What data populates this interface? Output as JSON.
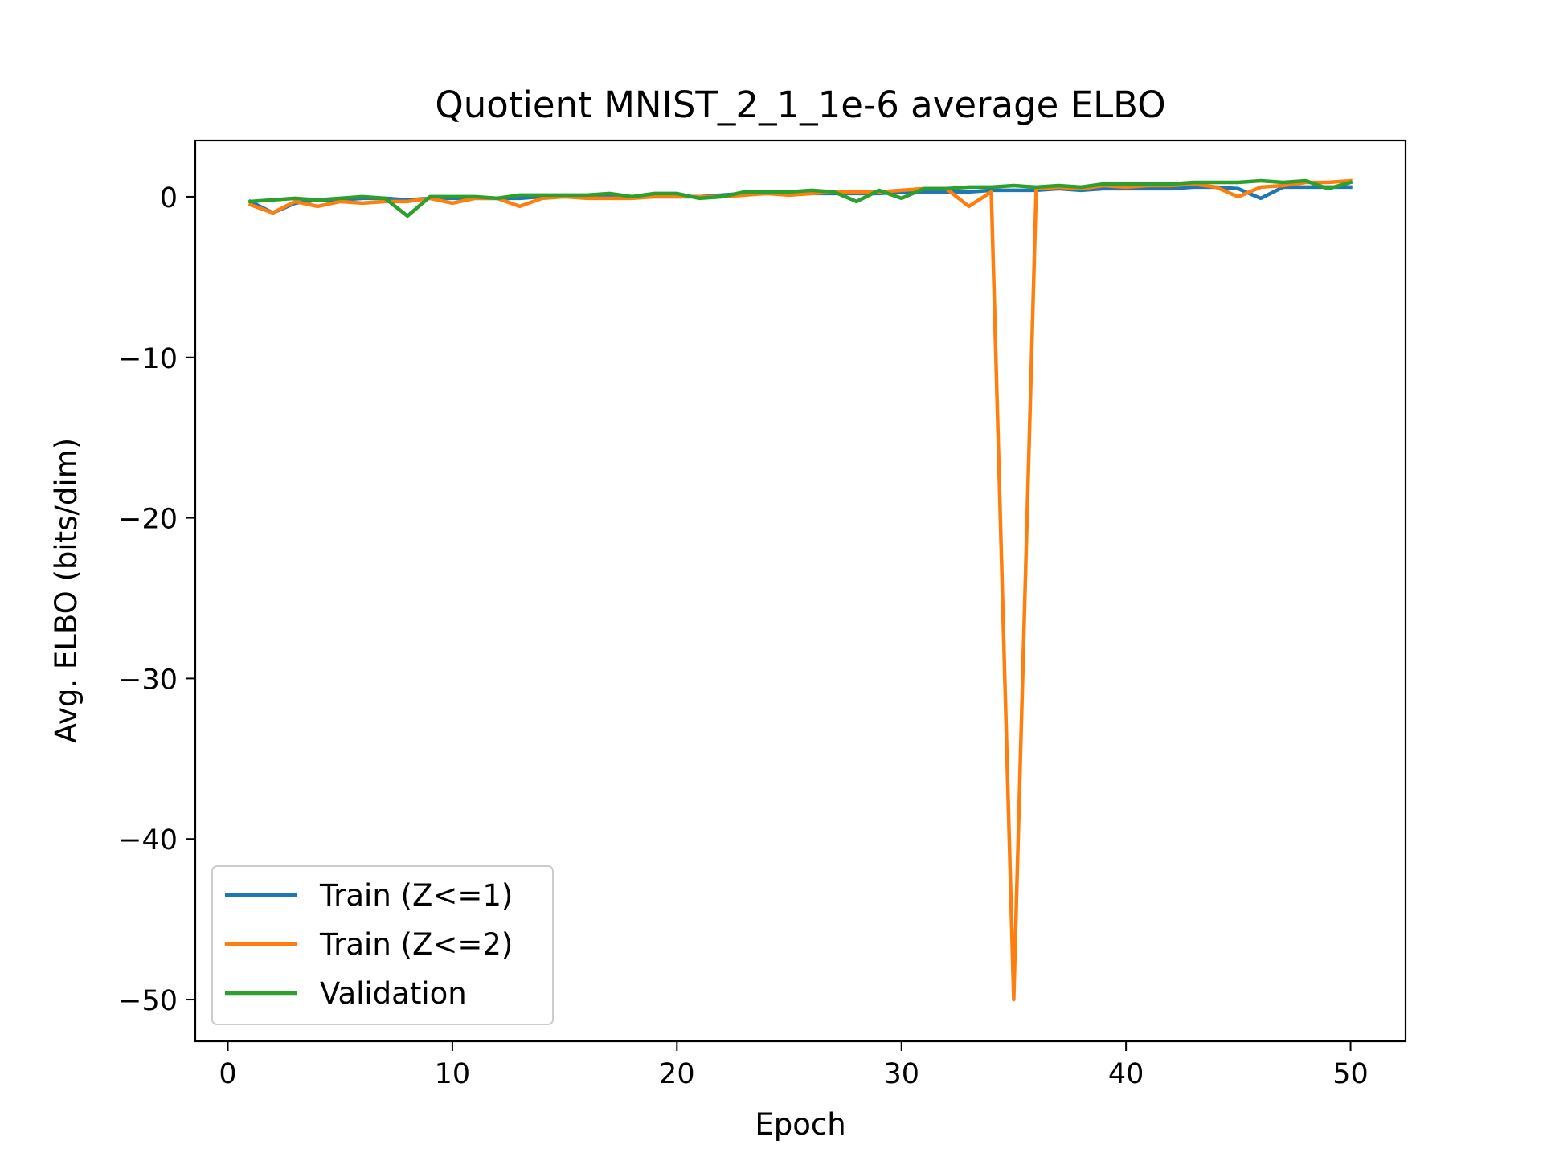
{
  "chart_data": {
    "type": "line",
    "title": "Quotient MNIST_2_1_1e-6 average ELBO",
    "xlabel": "Epoch",
    "ylabel": "Avg. ELBO (bits/dim)",
    "xlim": [
      -1.45,
      52.45
    ],
    "ylim": [
      -52.6,
      3.5
    ],
    "xticks": [
      0,
      10,
      20,
      30,
      40,
      50
    ],
    "xtick_labels": [
      "0",
      "10",
      "20",
      "30",
      "40",
      "50"
    ],
    "yticks": [
      0,
      -10,
      -20,
      -30,
      -40,
      -50
    ],
    "ytick_labels": [
      "0",
      "−10",
      "−20",
      "−30",
      "−40",
      "−50"
    ],
    "grid": false,
    "legend_position": "lower-left",
    "x": [
      1,
      2,
      3,
      4,
      5,
      6,
      7,
      8,
      9,
      10,
      11,
      12,
      13,
      14,
      15,
      16,
      17,
      18,
      19,
      20,
      21,
      22,
      23,
      24,
      25,
      26,
      27,
      28,
      29,
      30,
      31,
      32,
      33,
      34,
      35,
      36,
      37,
      38,
      39,
      40,
      41,
      42,
      43,
      44,
      45,
      46,
      47,
      48,
      49,
      50
    ],
    "series": [
      {
        "name": "Train (Z<=1)",
        "color": "#1f77b4",
        "values": [
          -0.3,
          -1.0,
          -0.4,
          -0.2,
          -0.2,
          -0.1,
          -0.1,
          -0.2,
          -0.1,
          -0.1,
          -0.1,
          -0.1,
          -0.1,
          0.0,
          0.0,
          0.0,
          0.0,
          0.0,
          0.0,
          0.0,
          0.0,
          0.1,
          0.2,
          0.2,
          0.2,
          0.2,
          0.2,
          0.2,
          0.2,
          0.3,
          0.3,
          0.3,
          0.3,
          0.4,
          0.4,
          0.4,
          0.5,
          0.4,
          0.5,
          0.5,
          0.5,
          0.5,
          0.6,
          0.6,
          0.5,
          -0.1,
          0.6,
          0.6,
          0.6,
          0.6
        ]
      },
      {
        "name": "Train (Z<=2)",
        "color": "#ff7f0e",
        "values": [
          -0.5,
          -1.0,
          -0.3,
          -0.6,
          -0.3,
          -0.4,
          -0.3,
          -0.3,
          -0.1,
          -0.4,
          -0.1,
          -0.1,
          -0.6,
          -0.1,
          0.0,
          -0.1,
          -0.1,
          -0.1,
          0.0,
          0.0,
          0.0,
          0.0,
          0.1,
          0.2,
          0.1,
          0.2,
          0.3,
          0.3,
          0.3,
          0.4,
          0.5,
          0.5,
          -0.6,
          0.3,
          -50.0,
          0.5,
          0.6,
          0.5,
          0.7,
          0.6,
          0.7,
          0.7,
          0.8,
          0.6,
          0.0,
          0.6,
          0.7,
          0.9,
          0.9,
          1.0
        ]
      },
      {
        "name": "Validation",
        "color": "#2ca02c",
        "values": [
          -0.3,
          -0.2,
          -0.1,
          -0.2,
          -0.1,
          0.0,
          -0.1,
          -1.2,
          0.0,
          0.0,
          0.0,
          -0.1,
          0.1,
          0.1,
          0.1,
          0.1,
          0.2,
          0.0,
          0.2,
          0.2,
          -0.1,
          0.0,
          0.3,
          0.3,
          0.3,
          0.4,
          0.3,
          -0.3,
          0.4,
          -0.1,
          0.5,
          0.5,
          0.6,
          0.6,
          0.7,
          0.6,
          0.7,
          0.6,
          0.8,
          0.8,
          0.8,
          0.8,
          0.9,
          0.9,
          0.9,
          1.0,
          0.9,
          1.0,
          0.5,
          0.9
        ]
      }
    ]
  }
}
